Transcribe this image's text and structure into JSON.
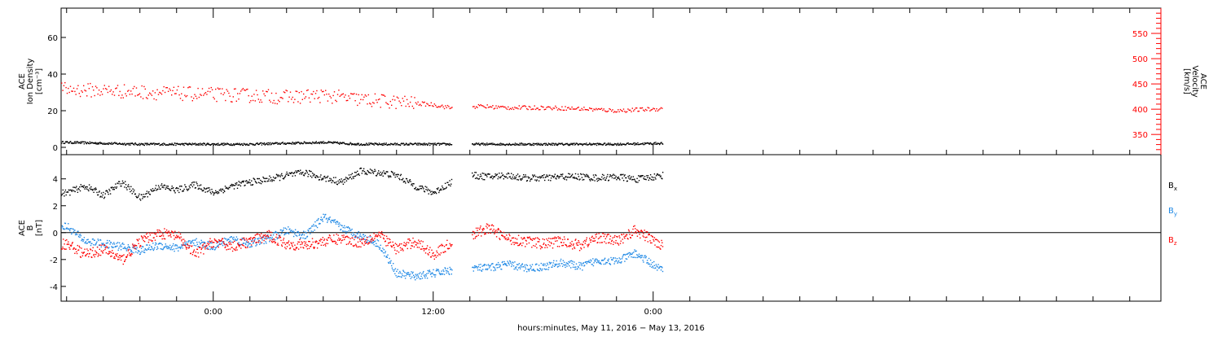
{
  "chart_data": [
    {
      "type": "scatter",
      "panel": "top",
      "ylabel_left": [
        "ACE",
        "Ion Density",
        "[cm⁻³]"
      ],
      "ylabel_right": [
        "ACE",
        "Velocity",
        "[km/s]"
      ],
      "ylim_left": [
        -4,
        76
      ],
      "ylim_right": [
        310,
        600
      ],
      "left_ticks": [
        0,
        20,
        40,
        60
      ],
      "right_ticks": [
        350,
        400,
        450,
        500,
        550
      ],
      "colors": {
        "density": "#000000",
        "velocity": "#ff0000"
      },
      "series": [
        {
          "key": "density",
          "axis": "left",
          "color": "#000000",
          "x": [
            -8,
            -6,
            -4,
            -2,
            0,
            2,
            4,
            6,
            8,
            10,
            12,
            13.2,
            14.4,
            16,
            18,
            20,
            22,
            24.5
          ],
          "y": [
            3,
            2.5,
            2,
            2,
            2,
            2,
            2.5,
            3,
            2,
            2,
            2,
            2,
            2,
            2,
            2,
            2,
            2,
            2.5
          ]
        },
        {
          "key": "velocity",
          "axis": "right",
          "color": "#ff0000",
          "x": [
            -8,
            -6,
            -4,
            -2,
            0,
            2,
            4,
            6,
            8,
            10,
            12,
            13.2,
            14.4,
            16,
            18,
            20,
            22,
            24.5
          ],
          "y": [
            440,
            438,
            435,
            432,
            430,
            428,
            425,
            428,
            420,
            415,
            410,
            402,
            407,
            404,
            404,
            402,
            398,
            402
          ]
        }
      ]
    },
    {
      "type": "scatter",
      "panel": "bottom",
      "ylabel_left": [
        "ACE",
        "B",
        "[nT]"
      ],
      "ylim": [
        -5.1,
        5.8
      ],
      "left_ticks": [
        -4,
        -2,
        0,
        2,
        4
      ],
      "zero_line": true,
      "colors": {
        "Bx": "#000000",
        "By": "#1e88e5",
        "Bz": "#ff0000"
      },
      "legend": [
        {
          "label": "B",
          "sub": "x",
          "color": "#000000"
        },
        {
          "label": "B",
          "sub": "y",
          "color": "#1e88e5"
        },
        {
          "label": "B",
          "sub": "z",
          "color": "#ff0000"
        }
      ],
      "series": [
        {
          "key": "Bx",
          "color": "#000000",
          "x": [
            -8,
            -7,
            -6,
            -5,
            -4,
            -3,
            -2,
            -1,
            0,
            1,
            2,
            3,
            4,
            5,
            6,
            7,
            8,
            9,
            10,
            11,
            12,
            13.2,
            14,
            15,
            16,
            17,
            18,
            19,
            20,
            21,
            22,
            23,
            24.5
          ],
          "y": [
            3,
            3.5,
            2.8,
            3.8,
            2.6,
            3.5,
            3.2,
            3.6,
            3,
            3.5,
            3.8,
            4,
            4.3,
            4.5,
            4.1,
            3.8,
            4.6,
            4.5,
            4.3,
            3.5,
            3,
            4,
            4.3,
            4.2,
            4.3,
            4.1,
            4.1,
            4.2,
            4.2,
            4.1,
            4.2,
            4.0,
            4.3
          ]
        },
        {
          "key": "By",
          "color": "#1e88e5",
          "x": [
            -8,
            -7,
            -6,
            -5,
            -4,
            -3,
            -2,
            -1,
            0,
            1,
            2,
            3,
            4,
            5,
            6,
            7,
            8,
            9,
            10,
            11,
            12,
            13.2,
            14,
            15,
            16,
            17,
            18,
            19,
            20,
            21,
            22,
            23,
            24.5
          ],
          "y": [
            0.5,
            -0.6,
            -0.8,
            -1.0,
            -1.3,
            -0.9,
            -1.1,
            -0.7,
            -1.0,
            -0.4,
            -0.8,
            -0.4,
            0.2,
            -0.2,
            1.2,
            0.4,
            -0.2,
            -0.8,
            -3.0,
            -3.2,
            -3.0,
            -2.7,
            -2.6,
            -2.6,
            -2.3,
            -2.6,
            -2.5,
            -2.2,
            -2.5,
            -2.0,
            -2.1,
            -1.5,
            -2.8
          ]
        },
        {
          "key": "Bz",
          "color": "#ff0000",
          "x": [
            -8,
            -7,
            -6,
            -5,
            -4,
            -3,
            -2,
            -1,
            0,
            1,
            2,
            3,
            4,
            5,
            6,
            7,
            8,
            9,
            10,
            11,
            12,
            13.2,
            14,
            15,
            16,
            17,
            18,
            19,
            20,
            21,
            22,
            23,
            24.5
          ],
          "y": [
            -0.8,
            -1.6,
            -1.2,
            -2.0,
            -0.6,
            0.0,
            -0.2,
            -1.6,
            -0.6,
            -1.0,
            -0.6,
            -0.2,
            -0.8,
            -0.9,
            -0.6,
            -0.4,
            -0.7,
            -0.1,
            -1.2,
            -0.6,
            -1.6,
            -0.5,
            -0.2,
            0.4,
            -0.4,
            -0.6,
            -0.8,
            -0.6,
            -0.9,
            -0.3,
            -0.6,
            0.2,
            -0.9
          ]
        }
      ]
    }
  ],
  "x_axis": {
    "label": "hours:minutes, May 11, 2016 − May 13, 2016",
    "range_hours": [
      -8.3,
      51.7
    ],
    "major_ticks": [
      {
        "hour": 0,
        "label": "0:00"
      },
      {
        "hour": 12,
        "label": "12:00"
      },
      {
        "hour": 24,
        "label": "0:00"
      }
    ],
    "minor_step_hours": 2,
    "data_gap_hours": [
      13.0,
      14.1
    ]
  }
}
